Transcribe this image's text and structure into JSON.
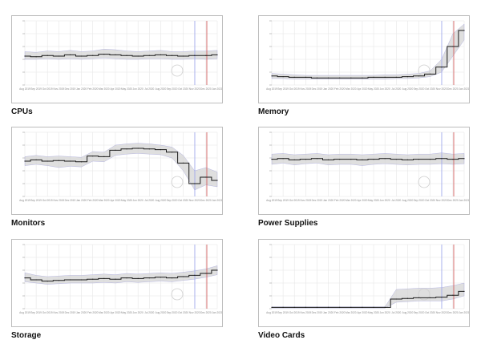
{
  "colors": {
    "price_line": "#1a1a1a",
    "band": "#d4d4d4",
    "band_edge": "#8c8cd8",
    "grid": "#e6e6e6",
    "axis_text": "#888888",
    "marker_blue": "#9aa3ee",
    "marker_red": "#d05050",
    "watermark": "#cfcfcf"
  },
  "chart_data": [
    {
      "type": "line",
      "caption": "CPUs",
      "x_ticks": [
        "Aug 2019",
        "Sep 2019",
        "Oct 2019",
        "Nov 2019",
        "Dec 2019",
        "Jan 2020",
        "Feb 2020",
        "Mar 2020",
        "Apr 2020",
        "May 2020",
        "Jun 2020",
        "Jul 2020",
        "Aug 2020",
        "Sep 2020",
        "Oct 2020",
        "Nov 2020",
        "Dec 2020",
        "Jan 2021"
      ],
      "series": [
        {
          "values": [
            45,
            44,
            46,
            45,
            47,
            45,
            46,
            48,
            47,
            46,
            45,
            46,
            47,
            46,
            45,
            46,
            46,
            47
          ]
        }
      ],
      "band": {
        "low": [
          40,
          40,
          41,
          40,
          41,
          40,
          41,
          42,
          41,
          40,
          40,
          41,
          41,
          40,
          40,
          41,
          40,
          41
        ],
        "high": [
          52,
          51,
          53,
          52,
          54,
          52,
          53,
          56,
          55,
          53,
          52,
          53,
          54,
          52,
          52,
          53,
          53,
          54
        ]
      },
      "ylim": [
        0,
        100
      ]
    },
    {
      "type": "line",
      "caption": "Memory",
      "x_ticks": [
        "Aug 2019",
        "Sep 2019",
        "Oct 2019",
        "Nov 2019",
        "Dec 2019",
        "Jan 2020",
        "Feb 2020",
        "Mar 2020",
        "Apr 2020",
        "May 2020",
        "Jun 2020",
        "Jul 2020",
        "Aug 2020",
        "Sep 2020",
        "Oct 2020",
        "Nov 2020",
        "Dec 2020",
        "Jan 2021"
      ],
      "series": [
        {
          "values": [
            14,
            13,
            12,
            12,
            11,
            11,
            11,
            11,
            11,
            12,
            12,
            12,
            13,
            14,
            17,
            28,
            60,
            85
          ]
        }
      ],
      "band": {
        "low": [
          10,
          10,
          9,
          9,
          9,
          9,
          9,
          9,
          9,
          9,
          9,
          10,
          10,
          11,
          13,
          20,
          45,
          70
        ],
        "high": [
          18,
          17,
          16,
          15,
          15,
          15,
          15,
          15,
          15,
          15,
          16,
          16,
          17,
          18,
          22,
          40,
          80,
          95
        ]
      },
      "ylim": [
        0,
        100
      ]
    },
    {
      "type": "line",
      "caption": "Monitors",
      "x_ticks": [
        "Aug 2019",
        "Sep 2019",
        "Oct 2019",
        "Nov 2019",
        "Dec 2019",
        "Jan 2020",
        "Feb 2020",
        "Mar 2020",
        "Apr 2020",
        "May 2020",
        "Jun 2020",
        "Jul 2020",
        "Aug 2020",
        "Sep 2020",
        "Oct 2020",
        "Nov 2020",
        "Dec 2020",
        "Jan 2021"
      ],
      "series": [
        {
          "values": [
            55,
            57,
            55,
            56,
            55,
            54,
            63,
            62,
            72,
            74,
            75,
            74,
            73,
            69,
            52,
            20,
            30,
            25
          ]
        }
      ],
      "band": {
        "low": [
          48,
          50,
          48,
          45,
          47,
          46,
          55,
          54,
          64,
          66,
          67,
          66,
          65,
          60,
          40,
          10,
          18,
          15
        ],
        "high": [
          62,
          64,
          62,
          63,
          62,
          61,
          70,
          69,
          80,
          82,
          83,
          82,
          80,
          77,
          64,
          40,
          45,
          38
        ]
      },
      "ylim": [
        0,
        100
      ]
    },
    {
      "type": "line",
      "caption": "Power Supplies",
      "x_ticks": [
        "Aug 2019",
        "Sep 2019",
        "Oct 2019",
        "Nov 2019",
        "Dec 2019",
        "Jan 2020",
        "Feb 2020",
        "Mar 2020",
        "Apr 2020",
        "May 2020",
        "Jun 2020",
        "Jul 2020",
        "Aug 2020",
        "Sep 2020",
        "Oct 2020",
        "Nov 2020",
        "Dec 2020",
        "Jan 2021"
      ],
      "series": [
        {
          "values": [
            58,
            59,
            57,
            58,
            59,
            57,
            58,
            58,
            57,
            58,
            59,
            58,
            57,
            58,
            58,
            59,
            58,
            59
          ]
        }
      ],
      "band": {
        "low": [
          50,
          52,
          49,
          51,
          52,
          49,
          50,
          50,
          48,
          50,
          51,
          50,
          49,
          50,
          50,
          51,
          50,
          51
        ],
        "high": [
          66,
          67,
          65,
          66,
          67,
          65,
          66,
          66,
          65,
          66,
          67,
          66,
          65,
          66,
          66,
          68,
          66,
          67
        ]
      },
      "ylim": [
        0,
        100
      ]
    },
    {
      "type": "line",
      "caption": "Storage",
      "x_ticks": [
        "Aug 2019",
        "Sep 2019",
        "Oct 2019",
        "Nov 2019",
        "Dec 2019",
        "Jan 2020",
        "Feb 2020",
        "Mar 2020",
        "Apr 2020",
        "May 2020",
        "Jun 2020",
        "Jul 2020",
        "Aug 2020",
        "Sep 2020",
        "Oct 2020",
        "Nov 2020",
        "Dec 2020",
        "Jan 2021"
      ],
      "series": [
        {
          "values": [
            48,
            45,
            43,
            44,
            45,
            45,
            46,
            47,
            46,
            48,
            47,
            48,
            49,
            48,
            50,
            52,
            55,
            60
          ]
        }
      ],
      "band": {
        "low": [
          42,
          40,
          38,
          39,
          40,
          40,
          40,
          41,
          40,
          42,
          41,
          42,
          43,
          42,
          44,
          46,
          49,
          53
        ],
        "high": [
          56,
          52,
          50,
          51,
          52,
          52,
          53,
          54,
          53,
          55,
          54,
          55,
          56,
          55,
          57,
          59,
          62,
          67
        ]
      },
      "ylim": [
        0,
        100
      ]
    },
    {
      "type": "line",
      "caption": "Video Cards",
      "x_ticks": [
        "Aug 2019",
        "Sep 2019",
        "Oct 2019",
        "Nov 2019",
        "Dec 2019",
        "Jan 2020",
        "Feb 2020",
        "Mar 2020",
        "Apr 2020",
        "May 2020",
        "Jun 2020",
        "Jul 2020",
        "Aug 2020",
        "Sep 2020",
        "Oct 2020",
        "Nov 2020",
        "Dec 2020",
        "Jan 2021"
      ],
      "series": [
        {
          "values": [
            2,
            2,
            2,
            2,
            2,
            2,
            2,
            2,
            2,
            2,
            2,
            15,
            16,
            17,
            17,
            18,
            21,
            27
          ]
        }
      ],
      "band": {
        "low": [
          1,
          1,
          1,
          1,
          1,
          1,
          1,
          1,
          1,
          1,
          1,
          10,
          11,
          12,
          12,
          12,
          15,
          20
        ],
        "high": [
          3,
          3,
          3,
          3,
          3,
          3,
          3,
          3,
          3,
          3,
          3,
          30,
          31,
          32,
          32,
          33,
          36,
          40
        ]
      },
      "ylim": [
        0,
        100
      ]
    }
  ]
}
